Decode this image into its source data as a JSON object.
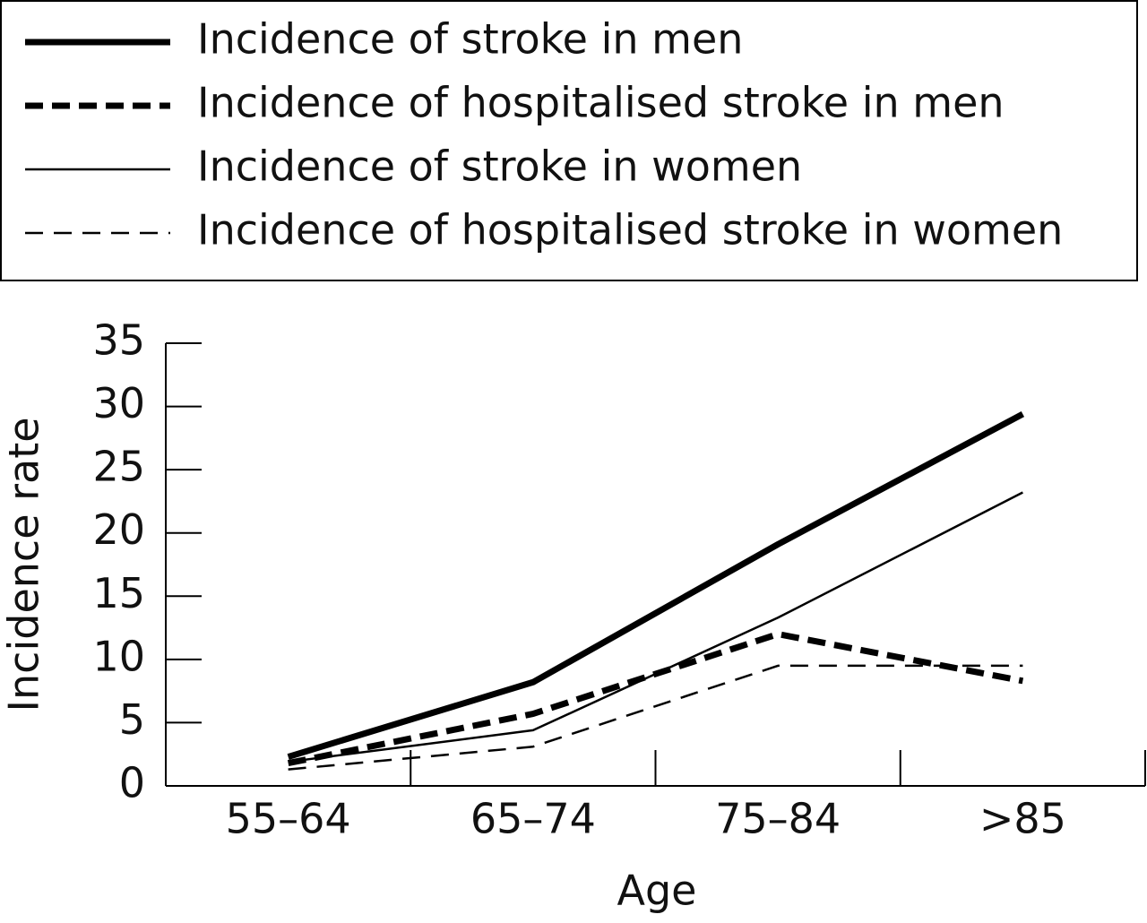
{
  "chart_data": {
    "type": "line",
    "categories": [
      "55–64",
      "65–74",
      "75–84",
      ">85"
    ],
    "x_label": "Age",
    "y_label": "Incidence rate",
    "ylim": [
      0,
      35
    ],
    "yticks": [
      0,
      5,
      10,
      15,
      20,
      25,
      30,
      35
    ],
    "series": [
      {
        "name": "Incidence of stroke in men",
        "color": "#000000",
        "style": "solid",
        "weight": "heavy",
        "values": [
          2.3,
          8.2,
          19.1,
          29.4
        ]
      },
      {
        "name": "Incidence of hospitalised stroke in men",
        "color": "#000000",
        "style": "dashed",
        "weight": "heavy",
        "values": [
          1.8,
          5.7,
          12.0,
          8.3
        ]
      },
      {
        "name": "Incidence of stroke in women",
        "color": "#000000",
        "style": "solid",
        "weight": "light",
        "values": [
          1.9,
          4.4,
          13.3,
          23.2
        ]
      },
      {
        "name": "Incidence of hospitalised stroke in women",
        "color": "#000000",
        "style": "dashed",
        "weight": "light",
        "values": [
          1.3,
          3.1,
          9.5,
          9.5
        ]
      }
    ],
    "legend": "top"
  }
}
